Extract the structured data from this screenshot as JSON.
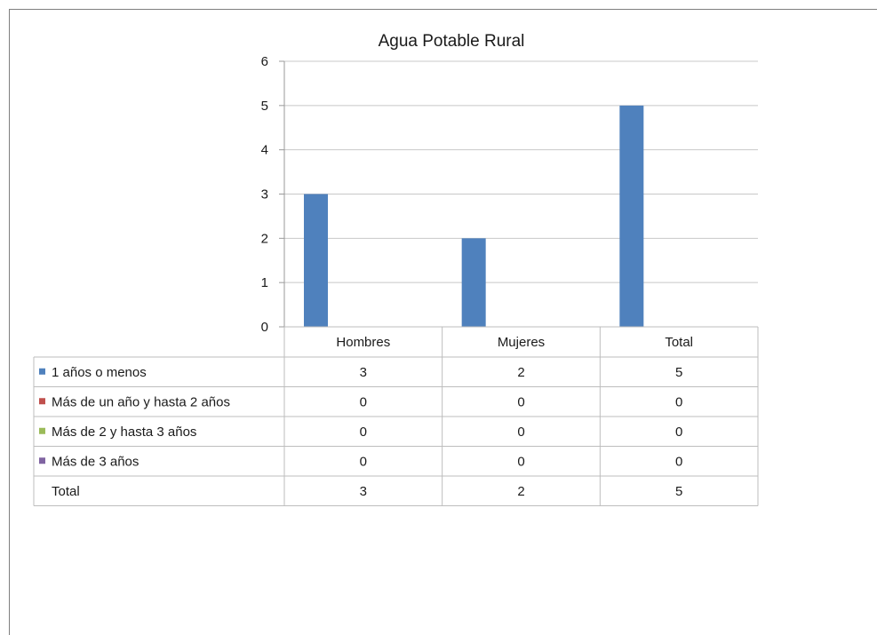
{
  "chart_data": {
    "type": "bar",
    "title": "Agua Potable Rural",
    "categories": [
      "Hombres",
      "Mujeres",
      "Total"
    ],
    "ylim": [
      0,
      6
    ],
    "yticks": [
      "0",
      "1",
      "2",
      "3",
      "4",
      "5",
      "6"
    ],
    "grid": true,
    "legend": "data-table",
    "series": [
      {
        "name": "1 años o menos",
        "color": "#4f81bd",
        "values": [
          3,
          2,
          5
        ]
      },
      {
        "name": "Más de un año y hasta 2 años",
        "color": "#c0504d",
        "values": [
          0,
          0,
          0
        ]
      },
      {
        "name": "Más de 2 y hasta 3 años",
        "color": "#9bbb59",
        "values": [
          0,
          0,
          0
        ]
      },
      {
        "name": "Más de 3 años",
        "color": "#8064a2",
        "values": [
          0,
          0,
          0
        ]
      }
    ],
    "total_row": {
      "label": "Total",
      "values": [
        3,
        2,
        5
      ]
    }
  }
}
